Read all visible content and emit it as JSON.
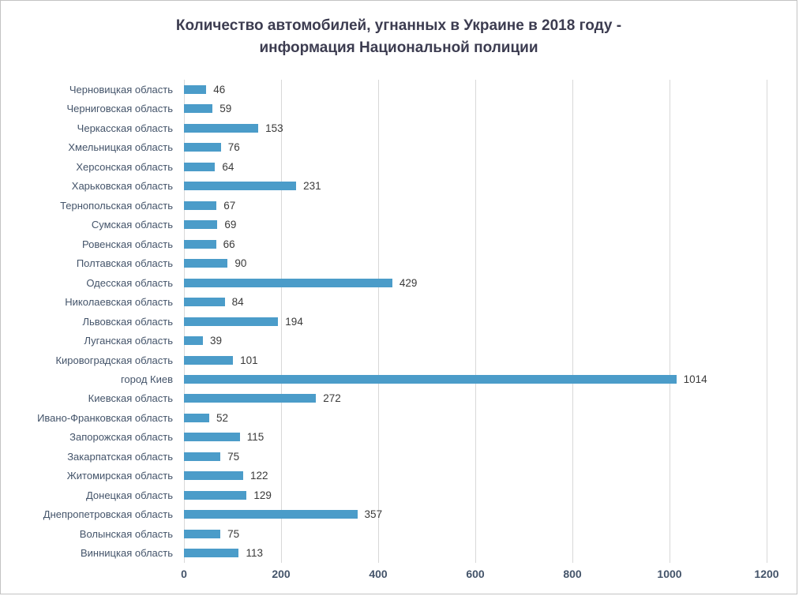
{
  "title": {
    "line1": "Количество автомобилей, угнанных в Украине в 2018 году -",
    "line2": "информация Национальной полиции"
  },
  "chart_data": {
    "type": "bar",
    "orientation": "horizontal",
    "title": "Количество автомобилей, угнанных в Украине в 2018 году - информация Национальной полиции",
    "categories": [
      "Черновицкая область",
      "Черниговская область",
      "Черкасская область",
      "Хмельницкая область",
      "Херсонская область",
      "Харьковская область",
      "Тернопольская область",
      "Сумская область",
      "Ровенская область",
      "Полтавская область",
      "Одесская область",
      "Николаевская область",
      "Львовская область",
      "Луганская область",
      "Кировоградская область",
      "город Киев",
      "Киевская область",
      "Ивано-Франковская область",
      "Запорожская область",
      "Закарпатская область",
      "Житомирская область",
      "Донецкая область",
      "Днепропетровская область",
      "Волынская область",
      "Винницкая область"
    ],
    "values": [
      46,
      59,
      153,
      76,
      64,
      231,
      67,
      69,
      66,
      90,
      429,
      84,
      194,
      39,
      101,
      1014,
      272,
      52,
      115,
      75,
      122,
      129,
      357,
      75,
      113
    ],
    "xlabel": "",
    "ylabel": "",
    "xlim": [
      0,
      1200
    ],
    "xticks": [
      0,
      200,
      400,
      600,
      800,
      1000,
      1200
    ],
    "grid": true,
    "legend": false,
    "bar_color": "#4b9cc9",
    "gridline_color": "#d8d8d8"
  }
}
